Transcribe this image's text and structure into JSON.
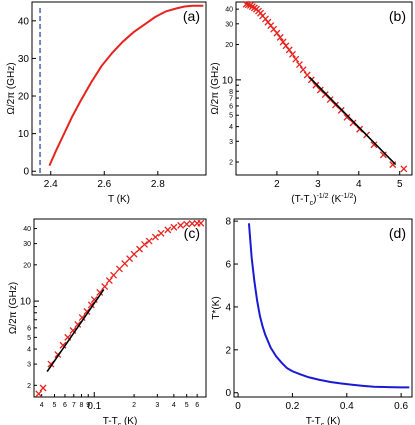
{
  "chart_data": [
    {
      "panel_label": "(a)",
      "type": "line",
      "xlabel": "T (K)",
      "ylabel": "Ω/2π (GHz)",
      "xscale": "linear",
      "yscale": "linear",
      "xlim": [
        2.33,
        2.98
      ],
      "ylim": [
        -1,
        45
      ],
      "xticks": [
        2.4,
        2.6,
        2.8
      ],
      "yticks": [
        0,
        10,
        20,
        30,
        40
      ],
      "reference_line": {
        "x": 2.36,
        "style": "dashed",
        "color": "#1a3a9c"
      },
      "series": [
        {
          "style": "line",
          "color": "#e8231e",
          "x": [
            2.395,
            2.42,
            2.45,
            2.48,
            2.51,
            2.55,
            2.59,
            2.63,
            2.67,
            2.71,
            2.75,
            2.79,
            2.83,
            2.87,
            2.9,
            2.93,
            2.97
          ],
          "y": [
            1.5,
            5.5,
            10,
            14.5,
            18.5,
            23.5,
            28,
            31.5,
            34.5,
            37,
            39,
            41,
            42.5,
            43.3,
            43.8,
            44,
            44
          ]
        }
      ]
    },
    {
      "panel_label": "(b)",
      "type": "scatter",
      "xlabel": "(T-Tc)^-1/2 (K^-1/2)",
      "ylabel": "Ω/2π (GHz)",
      "xscale": "linear",
      "yscale": "log",
      "xlim": [
        1.0,
        5.3
      ],
      "ylim": [
        1.55,
        46
      ],
      "xticks": [
        2,
        3,
        4,
        5
      ],
      "yticks": [
        2,
        3,
        4,
        5,
        6,
        7,
        8,
        9,
        10,
        20,
        30,
        40
      ],
      "series": [
        {
          "style": "markers",
          "marker": "x",
          "color": "#e8231e",
          "x": [
            1.25,
            1.3,
            1.35,
            1.4,
            1.45,
            1.5,
            1.55,
            1.6,
            1.65,
            1.72,
            1.78,
            1.85,
            1.92,
            2.0,
            2.08,
            2.15,
            2.22,
            2.3,
            2.38,
            2.46,
            2.55,
            2.64,
            2.74,
            2.84,
            2.95,
            3.06,
            3.18,
            3.3,
            3.43,
            3.57,
            3.71,
            3.86,
            4.02,
            4.19,
            4.37,
            4.6,
            4.83,
            5.1
          ],
          "y": [
            44,
            43.5,
            43,
            42,
            41,
            40,
            38.5,
            37,
            35,
            33,
            31,
            29,
            27,
            25,
            23,
            21,
            19.5,
            18,
            16.5,
            15,
            13.5,
            12.2,
            11,
            10,
            9,
            8.2,
            7.5,
            6.8,
            6.1,
            5.5,
            4.8,
            4.3,
            3.8,
            3.4,
            2.8,
            2.3,
            1.9,
            1.75
          ]
        },
        {
          "style": "line",
          "color": "#000000",
          "x": [
            2.8,
            4.9
          ],
          "y": [
            10.5,
            1.9
          ]
        }
      ]
    },
    {
      "panel_label": "(c)",
      "type": "scatter",
      "xlabel": "T-Tc (K)",
      "ylabel": "Ω/2π (GHz)",
      "xscale": "log",
      "yscale": "log",
      "xlim": [
        0.035,
        0.7
      ],
      "ylim": [
        1.6,
        48
      ],
      "xticks": [
        0.04,
        0.05,
        0.06,
        0.07,
        0.08,
        0.09,
        0.1,
        0.2,
        0.3,
        0.4,
        0.5,
        0.6
      ],
      "xtick_labels": [
        "4",
        "5",
        "6",
        "7",
        "8",
        "9",
        "0.1",
        "2",
        "3",
        "4",
        "5",
        "6"
      ],
      "yticks": [
        2,
        3,
        4,
        5,
        6,
        7,
        8,
        9,
        10,
        20,
        30,
        40
      ],
      "series": [
        {
          "style": "markers",
          "marker": "x",
          "color": "#e8231e",
          "x": [
            0.038,
            0.041,
            0.047,
            0.053,
            0.058,
            0.063,
            0.069,
            0.075,
            0.081,
            0.088,
            0.095,
            0.1,
            0.11,
            0.12,
            0.13,
            0.14,
            0.155,
            0.17,
            0.185,
            0.2,
            0.22,
            0.24,
            0.26,
            0.29,
            0.32,
            0.36,
            0.4,
            0.45,
            0.5,
            0.55,
            0.6,
            0.64
          ],
          "y": [
            1.7,
            1.9,
            3.0,
            3.6,
            4.3,
            5.0,
            5.7,
            6.4,
            7.3,
            8.2,
            9.3,
            10.3,
            11.8,
            13.2,
            14.8,
            16.4,
            18.5,
            20.5,
            22.5,
            24.5,
            27,
            29.5,
            31.5,
            34,
            36.5,
            39,
            41,
            42.5,
            43.5,
            44,
            44.2,
            44.3
          ]
        },
        {
          "style": "line",
          "color": "#000000",
          "x": [
            0.044,
            0.118
          ],
          "y": [
            2.6,
            12.5
          ]
        }
      ]
    },
    {
      "panel_label": "(d)",
      "type": "line",
      "xlabel": "T-Tc (K)",
      "ylabel": "T*(K)",
      "xscale": "linear",
      "yscale": "linear",
      "xlim": [
        -0.015,
        0.64
      ],
      "ylim": [
        -0.2,
        8.1
      ],
      "xticks": [
        0,
        0.2,
        0.4,
        0.6
      ],
      "yticks": [
        0,
        2,
        4,
        6,
        8
      ],
      "series": [
        {
          "style": "line",
          "color": "#1a1ad6",
          "x": [
            0.04,
            0.05,
            0.06,
            0.07,
            0.08,
            0.09,
            0.1,
            0.12,
            0.14,
            0.16,
            0.18,
            0.2,
            0.23,
            0.26,
            0.3,
            0.34,
            0.38,
            0.42,
            0.46,
            0.5,
            0.55,
            0.6,
            0.63
          ],
          "y": [
            7.9,
            6.3,
            5.2,
            4.3,
            3.6,
            3.1,
            2.7,
            2.1,
            1.7,
            1.4,
            1.15,
            1.0,
            0.85,
            0.72,
            0.6,
            0.5,
            0.43,
            0.37,
            0.32,
            0.28,
            0.26,
            0.25,
            0.25
          ]
        }
      ]
    }
  ]
}
